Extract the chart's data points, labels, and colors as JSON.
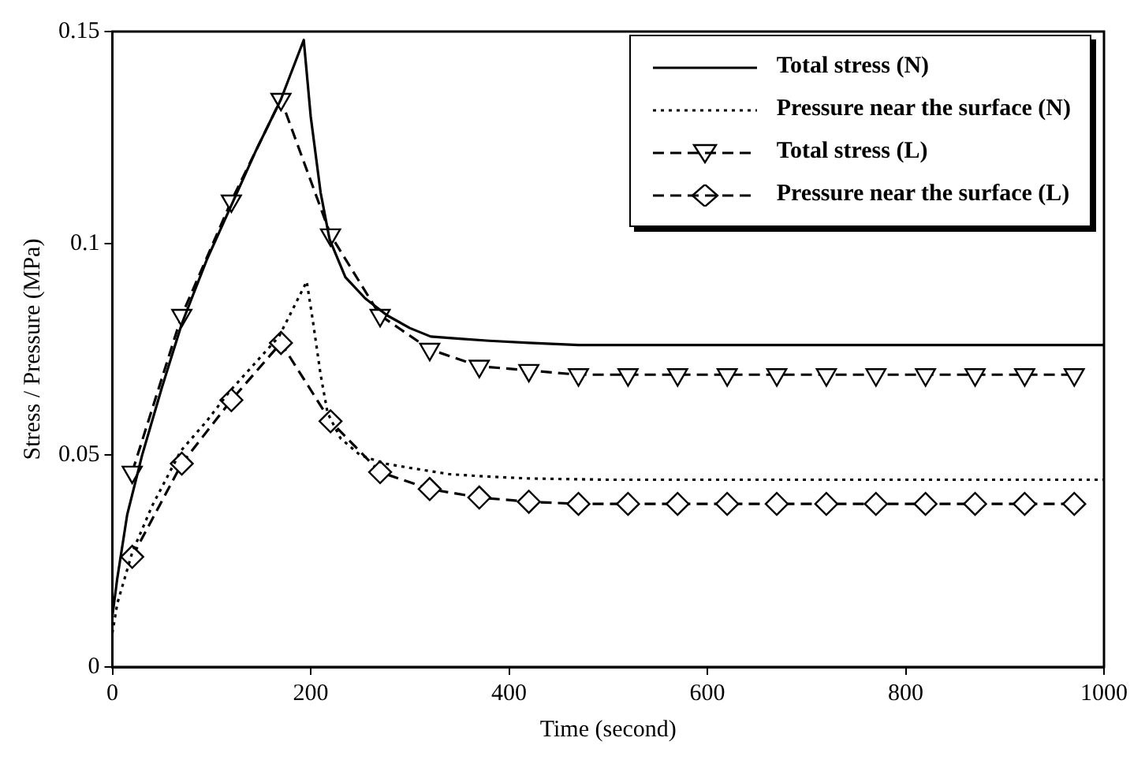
{
  "chart_data": {
    "type": "line",
    "xlabel": "Time (second)",
    "ylabel": "Stress / Pressure (MPa)",
    "xlim": [
      0,
      1000
    ],
    "xticks": [
      0,
      200,
      400,
      600,
      800,
      1000
    ],
    "ylim": [
      0,
      0.15
    ],
    "yticks": [
      0,
      0.05,
      0.1,
      0.15
    ],
    "grid": false,
    "legend": "top right",
    "series": [
      {
        "name": "Total stress (N)",
        "color": "#000000",
        "line_style": "solid",
        "marker": "none",
        "x": [
          0,
          5,
          15,
          30,
          50,
          70,
          95,
          120,
          145,
          170,
          193,
          200,
          210,
          219,
          235,
          255,
          277,
          300,
          321,
          350,
          380,
          420,
          470,
          550,
          650,
          800,
          1000
        ],
        "values": [
          0.012,
          0.021,
          0.036,
          0.05,
          0.066,
          0.081,
          0.096,
          0.109,
          0.122,
          0.134,
          0.148,
          0.13,
          0.112,
          0.101,
          0.092,
          0.087,
          0.083,
          0.08,
          0.078,
          0.0775,
          0.077,
          0.0765,
          0.076,
          0.076,
          0.076,
          0.076,
          0.076
        ]
      },
      {
        "name": "Pressure near the surface (N)",
        "color": "#000000",
        "line_style": "dotted",
        "marker": "none",
        "x": [
          0,
          5,
          20,
          40,
          69,
          95,
          118,
          145,
          168,
          196,
          202,
          210,
          217,
          230,
          250,
          275,
          300,
          340,
          375,
          420,
          500,
          650,
          800,
          1000
        ],
        "values": [
          0.008,
          0.015,
          0.027,
          0.038,
          0.051,
          0.058,
          0.065,
          0.072,
          0.078,
          0.091,
          0.082,
          0.069,
          0.06,
          0.054,
          0.05,
          0.048,
          0.047,
          0.0455,
          0.045,
          0.0445,
          0.0442,
          0.0442,
          0.0442,
          0.0442
        ]
      },
      {
        "name": "Total stress (L)",
        "color": "#000000",
        "line_style": "dashed",
        "marker": "triangle",
        "x": [
          20,
          70,
          120,
          170,
          220,
          270,
          320,
          370,
          420,
          470,
          520,
          570,
          620,
          670,
          720,
          770,
          820,
          870,
          920,
          970
        ],
        "values": [
          0.046,
          0.083,
          0.11,
          0.134,
          0.102,
          0.083,
          0.075,
          0.071,
          0.07,
          0.069,
          0.069,
          0.069,
          0.069,
          0.069,
          0.069,
          0.069,
          0.069,
          0.069,
          0.069,
          0.069
        ]
      },
      {
        "name": "Pressure near the surface (L)",
        "color": "#000000",
        "line_style": "dashed",
        "marker": "diamond",
        "x": [
          20,
          70,
          120,
          170,
          220,
          270,
          320,
          370,
          420,
          470,
          520,
          570,
          620,
          670,
          720,
          770,
          820,
          870,
          920,
          970
        ],
        "values": [
          0.026,
          0.048,
          0.063,
          0.0765,
          0.058,
          0.046,
          0.042,
          0.04,
          0.039,
          0.0385,
          0.0385,
          0.0385,
          0.0385,
          0.0385,
          0.0385,
          0.0385,
          0.0385,
          0.0385,
          0.0385,
          0.0385
        ]
      }
    ]
  }
}
